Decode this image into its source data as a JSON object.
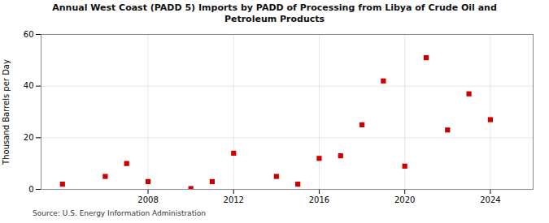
{
  "chart_data": {
    "type": "scatter",
    "title": "Annual West Coast (PADD 5) Imports by PADD of Processing from Libya of Crude Oil and\nPetroleum Products",
    "ylabel": "Thousand Barrels per Day",
    "source": "Source: U.S. Energy Information Administration",
    "x": [
      2004,
      2006,
      2007,
      2008,
      2010,
      2011,
      2012,
      2014,
      2015,
      2016,
      2017,
      2018,
      2019,
      2020,
      2021,
      2022,
      2023,
      2024
    ],
    "values": [
      2,
      5,
      10,
      3,
      0.3,
      3,
      14,
      5,
      2,
      12,
      13,
      25,
      42,
      9,
      51,
      23,
      37,
      27
    ],
    "color": "#cc0000",
    "marker": "square",
    "xlim": [
      2003,
      2026
    ],
    "xticks": [
      2008,
      2012,
      2016,
      2020,
      2024
    ],
    "ylim": [
      0,
      60
    ],
    "yticks": [
      0,
      20,
      40,
      60
    ],
    "grid": true
  }
}
